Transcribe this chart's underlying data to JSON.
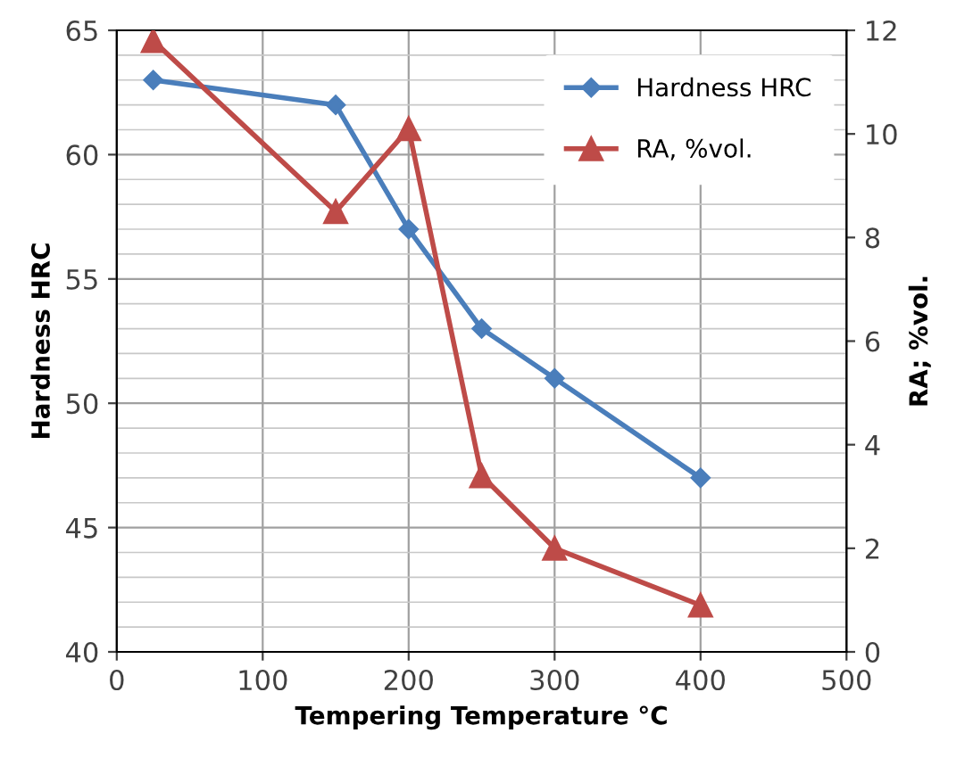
{
  "chart_data": {
    "type": "line",
    "xlabel": "Tempering Temperature °C",
    "ylabel": "Hardness HRC",
    "y2label": "RA; %vol.",
    "x": [
      25,
      150,
      200,
      250,
      300,
      400
    ],
    "series": [
      {
        "name": "Hardness HRC",
        "color": "#4a7ebb",
        "marker": "diamond",
        "values": [
          63,
          62,
          57,
          53,
          51,
          47
        ]
      },
      {
        "name": "RA, %vol.",
        "color": "#be4b48",
        "marker": "triangle",
        "axis": "y2",
        "values": [
          11.8,
          8.5,
          10.1,
          3.4,
          2.0,
          0.9
        ]
      }
    ],
    "xlim": [
      0,
      500
    ],
    "xticks": [
      0,
      100,
      200,
      300,
      400,
      500
    ],
    "ylim": [
      40,
      65
    ],
    "yticks": [
      40,
      {
        "value": 41,
        "label": null
      },
      {
        "value": 42,
        "label": null
      },
      {
        "value": 43,
        "label": null
      },
      {
        "value": 44,
        "label": null
      },
      45,
      {
        "value": 46,
        "label": null
      },
      {
        "value": 47,
        "label": null
      },
      {
        "value": 48,
        "label": null
      },
      {
        "value": 49,
        "label": null
      },
      50,
      {
        "value": 51,
        "label": null
      },
      {
        "value": 52,
        "label": null
      },
      {
        "value": 53,
        "label": null
      },
      {
        "value": 54,
        "label": null
      },
      55,
      {
        "value": 56,
        "label": null
      },
      {
        "value": 57,
        "label": null
      },
      {
        "value": 58,
        "label": null
      },
      {
        "value": 59,
        "label": null
      },
      60,
      {
        "value": 61,
        "label": null
      },
      {
        "value": 62,
        "label": null
      },
      {
        "value": 63,
        "label": null
      },
      {
        "value": 64,
        "label": null
      },
      65
    ],
    "y2lim": [
      0,
      12
    ],
    "y2ticks": [
      0,
      2,
      4,
      6,
      8,
      10,
      12
    ],
    "grid": true,
    "legend": "top right",
    "line_style": "solid"
  }
}
